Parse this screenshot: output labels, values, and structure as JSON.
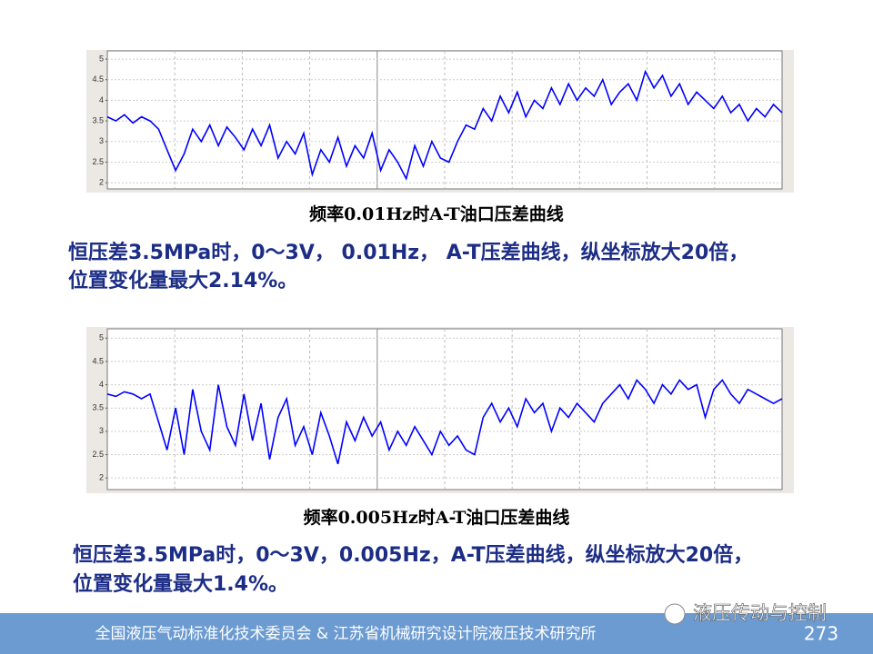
{
  "chart_data": [
    {
      "type": "line",
      "title": "频率0.01Hz时A-T油口压差曲线",
      "color": "#0000ff",
      "ylim": [
        1.85,
        5.2
      ],
      "yticks": [
        2,
        2.5,
        3,
        3.5,
        4,
        4.5,
        5
      ],
      "grid": true,
      "values": [
        3.6,
        3.5,
        3.65,
        3.45,
        3.6,
        3.5,
        3.3,
        2.8,
        2.3,
        2.7,
        3.3,
        3.0,
        3.4,
        2.9,
        3.35,
        3.1,
        2.8,
        3.3,
        2.9,
        3.4,
        2.6,
        3.0,
        2.7,
        3.2,
        2.2,
        2.8,
        2.5,
        3.1,
        2.4,
        2.9,
        2.6,
        3.2,
        2.3,
        2.8,
        2.5,
        2.1,
        2.9,
        2.4,
        3.0,
        2.6,
        2.5,
        3.0,
        3.4,
        3.3,
        3.8,
        3.5,
        4.1,
        3.7,
        4.2,
        3.6,
        4.0,
        3.8,
        4.3,
        3.9,
        4.4,
        4.0,
        4.3,
        4.1,
        4.5,
        3.9,
        4.2,
        4.4,
        4.0,
        4.7,
        4.3,
        4.6,
        4.1,
        4.4,
        3.9,
        4.2,
        4.0,
        3.8,
        4.1,
        3.7,
        3.9,
        3.5,
        3.8,
        3.6,
        3.9,
        3.7
      ]
    },
    {
      "type": "line",
      "title": "频率0.005Hz时A-T油口压差曲线",
      "color": "#0000ff",
      "ylim": [
        1.75,
        5.2
      ],
      "yticks": [
        2,
        2.5,
        3,
        3.5,
        4,
        4.5,
        5
      ],
      "grid": true,
      "values": [
        3.8,
        3.75,
        3.85,
        3.8,
        3.7,
        3.8,
        3.2,
        2.6,
        3.5,
        2.5,
        3.9,
        3.0,
        2.6,
        4.0,
        3.1,
        2.7,
        3.8,
        2.8,
        3.6,
        2.4,
        3.3,
        3.7,
        2.7,
        3.1,
        2.5,
        3.4,
        2.9,
        2.3,
        3.2,
        2.8,
        3.3,
        2.9,
        3.2,
        2.6,
        3.0,
        2.7,
        3.1,
        2.8,
        2.5,
        3.0,
        2.7,
        2.9,
        2.6,
        2.5,
        3.3,
        3.6,
        3.2,
        3.5,
        3.1,
        3.7,
        3.4,
        3.6,
        3.0,
        3.5,
        3.3,
        3.6,
        3.4,
        3.2,
        3.6,
        3.8,
        4.0,
        3.7,
        4.1,
        3.9,
        3.6,
        4.0,
        3.8,
        4.1,
        3.9,
        4.0,
        3.3,
        3.9,
        4.1,
        3.8,
        3.6,
        3.9,
        3.8,
        3.7,
        3.6,
        3.7
      ]
    }
  ],
  "slide": {
    "paragraphs": [
      [
        "恒压差3.5MPa时，0～3V， 0.01Hz， A-T压差曲线，纵坐标放大20倍，",
        "位置变化量最大2.14%。"
      ],
      [
        "恒压差3.5MPa时，0～3V，0.005Hz，A-T压差曲线，纵坐标放大20倍，",
        "位置变化量最大1.4%。"
      ]
    ],
    "footer": "全国液压气动标准化技术委员会 & 江苏省机械研究设计院液压技术研究所",
    "watermark": "液压传动与控制",
    "page": 273
  }
}
